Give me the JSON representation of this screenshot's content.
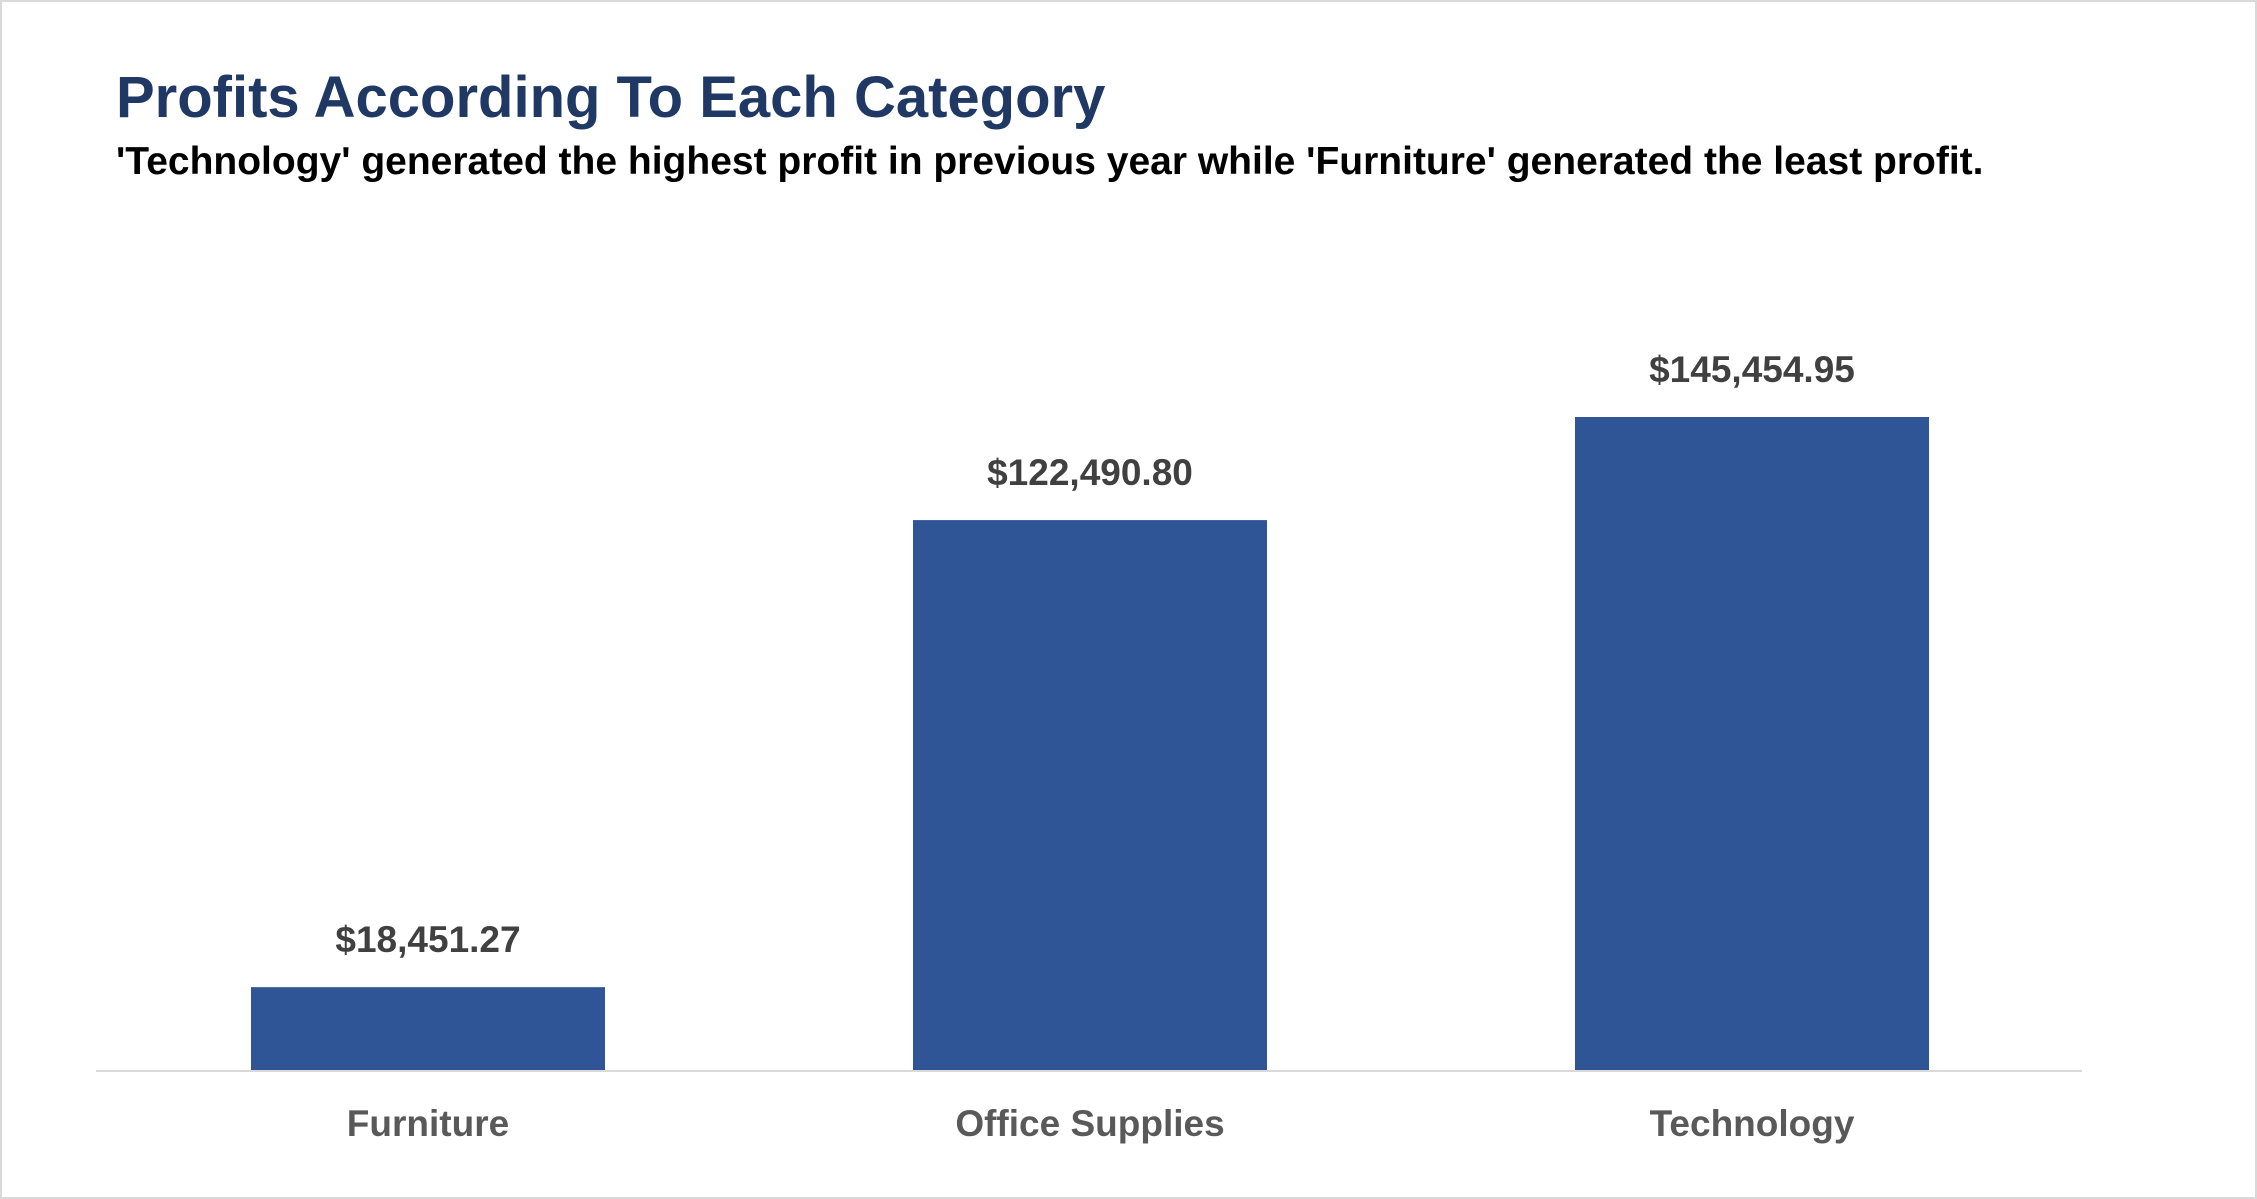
{
  "chart_data": {
    "type": "bar",
    "title": "Profits According To Each Category",
    "subtitle": "'Technology' generated the highest profit in previous year while 'Furniture' generated the least profit.",
    "categories": [
      "Furniture",
      "Office Supplies",
      "Technology"
    ],
    "values": [
      18451.27,
      122490.8,
      145454.95
    ],
    "data_labels": [
      "$18,451.27",
      "$122,490.80",
      "$145,454.95"
    ],
    "xlabel": "",
    "ylabel": "",
    "ylim": [
      0,
      145454.95
    ],
    "grid": false,
    "legend": "none",
    "bar_color": "#2f5597",
    "title_color": "#1f3864"
  }
}
